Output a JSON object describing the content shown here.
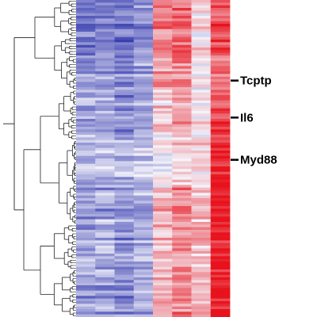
{
  "chart_data": {
    "type": "heatmap",
    "title": "",
    "xlabel": "",
    "ylabel": "",
    "color_scale": {
      "low": "#3a3fb0",
      "mid": "#f4f4fb",
      "high": "#e8121c",
      "range": [
        -1,
        1
      ]
    },
    "dendrogram": {
      "side": "left",
      "color": "#222222"
    },
    "n_columns": 8,
    "column_profile": [
      -0.55,
      -0.5,
      -0.6,
      -0.45,
      0.4,
      0.5,
      0.05,
      0.6
    ],
    "row_blocks": [
      {
        "rows": [
          0,
          20
        ],
        "offsets": [
          -0.1,
          -0.1,
          -0.05,
          -0.05,
          0.1,
          0.1,
          0.05,
          0.1
        ]
      },
      {
        "rows": [
          21,
          33
        ],
        "offsets": [
          0.0,
          0.0,
          0.0,
          0.0,
          0.05,
          0.0,
          0.0,
          0.0
        ]
      },
      {
        "rows": [
          34,
          50
        ],
        "offsets": [
          0.15,
          0.15,
          0.1,
          0.05,
          -0.2,
          -0.15,
          0.05,
          0.1
        ]
      },
      {
        "rows": [
          51,
          70
        ],
        "offsets": [
          0.25,
          0.25,
          0.25,
          0.2,
          -0.4,
          -0.35,
          0.1,
          0.35
        ]
      },
      {
        "rows": [
          71,
          119
        ],
        "offsets": [
          0.05,
          0.05,
          0.05,
          0.05,
          -0.1,
          0.0,
          0.25,
          0.4
        ]
      }
    ],
    "n_rows": 120,
    "annotations": [
      {
        "label": "Tcptp",
        "row": 30
      },
      {
        "label": "Il6",
        "row": 44
      },
      {
        "label": "Myd88",
        "row": 60
      }
    ]
  }
}
